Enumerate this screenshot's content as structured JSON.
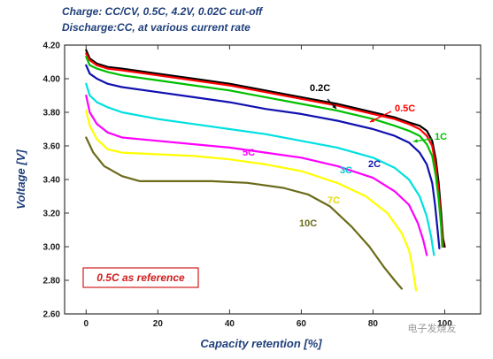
{
  "header": {
    "line1": "Charge: CC/CV, 0.5C, 4.2V, 0.02C cut-off",
    "line2": "Discharge:CC, at various current rate"
  },
  "watermark": "电子发烧友",
  "chart_data": {
    "type": "line",
    "title": "",
    "xlabel": "Capacity retention [%]",
    "ylabel": "Voltage [V]",
    "xlim": [
      -6,
      110
    ],
    "ylim": [
      2.6,
      4.2
    ],
    "x_ticks": [
      0,
      20,
      40,
      60,
      80,
      100
    ],
    "x_tick_labels": [
      "0",
      "20",
      "40",
      "60",
      "80",
      "100"
    ],
    "y_ticks": [
      2.6,
      2.8,
      3.0,
      3.2,
      3.4,
      3.6,
      3.8,
      4.0,
      4.2
    ],
    "y_tick_labels": [
      "2.60",
      "2.80",
      "3.00",
      "3.20",
      "3.40",
      "3.60",
      "3.80",
      "4.00",
      "4.20"
    ],
    "grid": false,
    "annotation": "0.5C as reference",
    "series": [
      {
        "name": "0.2C",
        "color": "#000000",
        "points": [
          [
            0,
            4.17
          ],
          [
            1,
            4.12
          ],
          [
            3,
            4.09
          ],
          [
            6,
            4.07
          ],
          [
            10,
            4.06
          ],
          [
            20,
            4.03
          ],
          [
            30,
            4.0
          ],
          [
            40,
            3.97
          ],
          [
            50,
            3.93
          ],
          [
            60,
            3.89
          ],
          [
            70,
            3.85
          ],
          [
            80,
            3.8
          ],
          [
            86,
            3.77
          ],
          [
            90,
            3.74
          ],
          [
            93,
            3.72
          ],
          [
            95,
            3.69
          ],
          [
            96.5,
            3.63
          ],
          [
            97.5,
            3.52
          ],
          [
            98.3,
            3.38
          ],
          [
            99,
            3.2
          ],
          [
            99.5,
            3.05
          ],
          [
            100,
            3.0
          ]
        ]
      },
      {
        "name": "0.5C",
        "color": "#ff0000",
        "points": [
          [
            0,
            4.15
          ],
          [
            1,
            4.11
          ],
          [
            3,
            4.08
          ],
          [
            6,
            4.06
          ],
          [
            10,
            4.05
          ],
          [
            20,
            4.02
          ],
          [
            30,
            3.99
          ],
          [
            40,
            3.96
          ],
          [
            50,
            3.92
          ],
          [
            60,
            3.88
          ],
          [
            70,
            3.84
          ],
          [
            80,
            3.79
          ],
          [
            86,
            3.76
          ],
          [
            90,
            3.73
          ],
          [
            93,
            3.7
          ],
          [
            95,
            3.66
          ],
          [
            96.5,
            3.6
          ],
          [
            97.5,
            3.48
          ],
          [
            98.3,
            3.33
          ],
          [
            99,
            3.15
          ],
          [
            99.6,
            3.0
          ]
        ]
      },
      {
        "name": "1C",
        "color": "#00c000",
        "points": [
          [
            0,
            4.13
          ],
          [
            1,
            4.08
          ],
          [
            3,
            4.06
          ],
          [
            6,
            4.04
          ],
          [
            10,
            4.02
          ],
          [
            20,
            3.99
          ],
          [
            30,
            3.96
          ],
          [
            40,
            3.93
          ],
          [
            50,
            3.89
          ],
          [
            60,
            3.85
          ],
          [
            70,
            3.81
          ],
          [
            80,
            3.76
          ],
          [
            86,
            3.72
          ],
          [
            90,
            3.69
          ],
          [
            93,
            3.66
          ],
          [
            95,
            3.61
          ],
          [
            96.5,
            3.54
          ],
          [
            97.5,
            3.42
          ],
          [
            98.3,
            3.28
          ],
          [
            99,
            3.12
          ],
          [
            99.3,
            3.0
          ]
        ]
      },
      {
        "name": "2C",
        "color": "#1010b0",
        "points": [
          [
            0,
            4.08
          ],
          [
            1,
            4.03
          ],
          [
            3,
            4.0
          ],
          [
            6,
            3.97
          ],
          [
            10,
            3.95
          ],
          [
            20,
            3.92
          ],
          [
            30,
            3.89
          ],
          [
            40,
            3.86
          ],
          [
            50,
            3.82
          ],
          [
            60,
            3.79
          ],
          [
            70,
            3.75
          ],
          [
            80,
            3.7
          ],
          [
            86,
            3.66
          ],
          [
            90,
            3.62
          ],
          [
            93,
            3.56
          ],
          [
            95,
            3.49
          ],
          [
            96.5,
            3.38
          ],
          [
            97.3,
            3.25
          ],
          [
            98,
            3.1
          ],
          [
            98.5,
            2.99
          ]
        ]
      },
      {
        "name": "3C",
        "color": "#00e0e0",
        "points": [
          [
            0,
            3.97
          ],
          [
            1,
            3.9
          ],
          [
            3,
            3.86
          ],
          [
            6,
            3.83
          ],
          [
            10,
            3.8
          ],
          [
            20,
            3.76
          ],
          [
            30,
            3.73
          ],
          [
            40,
            3.7
          ],
          [
            50,
            3.67
          ],
          [
            60,
            3.63
          ],
          [
            70,
            3.59
          ],
          [
            80,
            3.53
          ],
          [
            86,
            3.47
          ],
          [
            90,
            3.4
          ],
          [
            93,
            3.3
          ],
          [
            95,
            3.18
          ],
          [
            96.2,
            3.06
          ],
          [
            97,
            2.95
          ]
        ]
      },
      {
        "name": "5C",
        "color": "#ff00ff",
        "points": [
          [
            0,
            3.9
          ],
          [
            1,
            3.8
          ],
          [
            3,
            3.73
          ],
          [
            6,
            3.68
          ],
          [
            10,
            3.65
          ],
          [
            20,
            3.63
          ],
          [
            30,
            3.61
          ],
          [
            40,
            3.59
          ],
          [
            50,
            3.56
          ],
          [
            60,
            3.53
          ],
          [
            70,
            3.48
          ],
          [
            80,
            3.41
          ],
          [
            86,
            3.33
          ],
          [
            90,
            3.25
          ],
          [
            92.5,
            3.14
          ],
          [
            94,
            3.04
          ],
          [
            95,
            2.95
          ]
        ]
      },
      {
        "name": "7C",
        "color": "#ffff00",
        "points": [
          [
            0,
            3.81
          ],
          [
            1,
            3.72
          ],
          [
            3,
            3.64
          ],
          [
            6,
            3.58
          ],
          [
            10,
            3.56
          ],
          [
            20,
            3.55
          ],
          [
            30,
            3.54
          ],
          [
            40,
            3.52
          ],
          [
            50,
            3.49
          ],
          [
            60,
            3.45
          ],
          [
            70,
            3.38
          ],
          [
            78,
            3.3
          ],
          [
            84,
            3.2
          ],
          [
            88,
            3.08
          ],
          [
            90,
            2.98
          ],
          [
            91,
            2.88
          ],
          [
            92,
            2.74
          ]
        ]
      },
      {
        "name": "10C",
        "color": "#6b6b1a",
        "points": [
          [
            0,
            3.65
          ],
          [
            2,
            3.56
          ],
          [
            5,
            3.48
          ],
          [
            10,
            3.42
          ],
          [
            15,
            3.39
          ],
          [
            20,
            3.39
          ],
          [
            25,
            3.39
          ],
          [
            35,
            3.39
          ],
          [
            45,
            3.38
          ],
          [
            55,
            3.35
          ],
          [
            62,
            3.31
          ],
          [
            68,
            3.24
          ],
          [
            74,
            3.12
          ],
          [
            79,
            3.0
          ],
          [
            83,
            2.88
          ],
          [
            86,
            2.8
          ],
          [
            88,
            2.75
          ]
        ]
      }
    ]
  }
}
